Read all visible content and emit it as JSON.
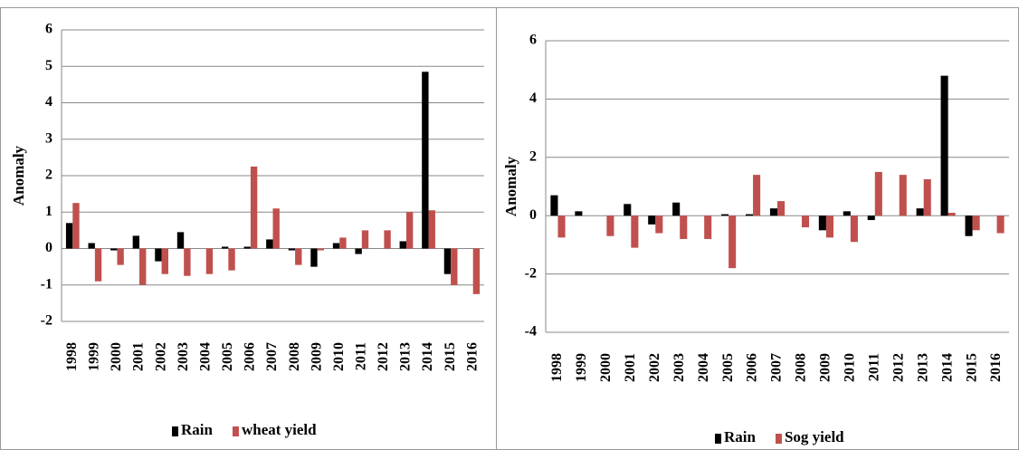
{
  "chart_data": [
    {
      "type": "bar",
      "ylabel": "Anomaly",
      "categories": [
        "1998",
        "1999",
        "2000",
        "2001",
        "2002",
        "2003",
        "2004",
        "2005",
        "2006",
        "2007",
        "2008",
        "2009",
        "2010",
        "2011",
        "2012",
        "2013",
        "2014",
        "2015",
        "2016"
      ],
      "series": [
        {
          "name": "Rain",
          "color": "#000000",
          "values": [
            0.7,
            0.15,
            -0.05,
            0.35,
            -0.35,
            0.45,
            0,
            0.05,
            0.05,
            0.25,
            -0.05,
            -0.5,
            0.15,
            -0.15,
            0,
            0.2,
            4.85,
            -0.7,
            0
          ]
        },
        {
          "name": "wheat yield",
          "color": "#c0504d",
          "values": [
            1.25,
            -0.9,
            -0.45,
            -1.0,
            -0.7,
            -0.75,
            -0.7,
            -0.6,
            2.25,
            1.1,
            -0.45,
            -0.05,
            0.3,
            0.5,
            0.5,
            1.0,
            1.05,
            -1.0,
            -1.25
          ]
        }
      ],
      "ylim": [
        -2,
        6
      ],
      "yticks": [
        -2,
        -1,
        0,
        1,
        2,
        3,
        4,
        5,
        6
      ],
      "grid": true
    },
    {
      "type": "bar",
      "ylabel": "Anomaly",
      "categories": [
        "1998",
        "1999",
        "2000",
        "2001",
        "2002",
        "2003",
        "2004",
        "2005",
        "2006",
        "2007",
        "2008",
        "2009",
        "2010",
        "2011",
        "2012",
        "2013",
        "2014",
        "2015",
        "2016"
      ],
      "series": [
        {
          "name": "Rain",
          "color": "#000000",
          "values": [
            0.7,
            0.15,
            0,
            0.4,
            -0.3,
            0.45,
            0,
            0.05,
            0.05,
            0.25,
            0,
            -0.5,
            0.15,
            -0.15,
            0,
            0.25,
            4.8,
            -0.7,
            0
          ]
        },
        {
          "name": "Sog yield",
          "color": "#c0504d",
          "values": [
            -0.75,
            0,
            -0.7,
            -1.1,
            -0.6,
            -0.8,
            -0.8,
            -1.8,
            1.4,
            0.5,
            -0.4,
            -0.75,
            -0.9,
            1.5,
            1.4,
            1.25,
            0.1,
            -0.5,
            -0.6
          ]
        }
      ],
      "ylim": [
        -4,
        6
      ],
      "yticks": [
        -4,
        -2,
        0,
        2,
        4,
        6
      ],
      "grid": true
    }
  ]
}
